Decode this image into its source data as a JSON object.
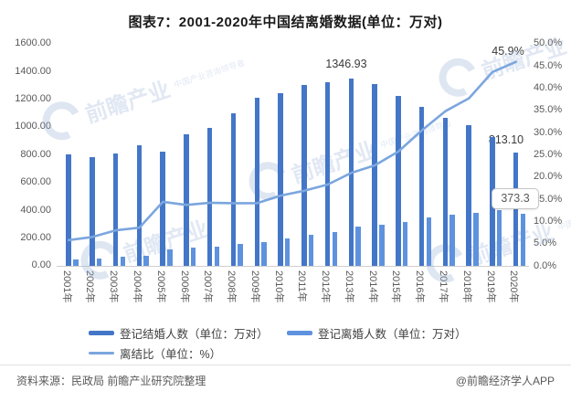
{
  "title": "图表7：2001-2020年中国结离婚数据(单位：万对)",
  "chart_data": {
    "type": "bar",
    "categories": [
      "2001年",
      "2002年",
      "2003年",
      "2004年",
      "2005年",
      "2006年",
      "2007年",
      "2008年",
      "2009年",
      "2010年",
      "2011年",
      "2012年",
      "2013年",
      "2014年",
      "2015年",
      "2016年",
      "2017年",
      "2018年",
      "2019年",
      "2020年"
    ],
    "series": [
      {
        "name": "登记结婚人数（单位：万对）",
        "type": "bar",
        "axis": "left",
        "color": "#4476c8",
        "values": [
          805.0,
          786.0,
          811.4,
          867.2,
          823.1,
          945.0,
          991.4,
          1098.3,
          1211.9,
          1241.0,
          1302.4,
          1323.6,
          1346.93,
          1306.7,
          1224.7,
          1142.8,
          1063.1,
          1010.8,
          927.3,
          813.1
        ]
      },
      {
        "name": "登记离婚人数（单位：万对）",
        "type": "bar",
        "axis": "left",
        "color": "#5e92de",
        "values": [
          47,
          51,
          65,
          75,
          118.9,
          129.1,
          140.4,
          155.3,
          171.3,
          196.1,
          220.7,
          242.3,
          281.5,
          295.7,
          314.9,
          348.6,
          370.4,
          381.2,
          404.7,
          373.3
        ]
      },
      {
        "name": "离结比（单位：%）",
        "type": "line",
        "axis": "right",
        "color": "#7ba6de",
        "values": [
          5.8,
          6.5,
          8.0,
          8.6,
          14.4,
          13.7,
          14.2,
          14.1,
          14.1,
          15.8,
          16.9,
          18.3,
          20.9,
          22.6,
          25.7,
          30.5,
          34.8,
          37.7,
          43.6,
          45.9
        ]
      }
    ],
    "left_axis": {
      "min": 0,
      "max": 1600,
      "step": 200,
      "labels": [
        "1600.00",
        "1400.00",
        "1200.00",
        "1000.00",
        "800.00",
        "600.00",
        "400.00",
        "200.00",
        "0.00"
      ]
    },
    "right_axis": {
      "min": 0,
      "max": 50,
      "step": 5,
      "labels": [
        "50.0%",
        "45.0%",
        "40.0%",
        "35.0%",
        "30.0%",
        "25.0%",
        "20.0%",
        "15.0%",
        "10.0%",
        "5.0%",
        "0.0%"
      ]
    },
    "grid": "off",
    "annotations": {
      "peak_marriage_2013": "1346.93",
      "marriage_2020": "813.10",
      "divorce_2020_boxed": "373.3",
      "ratio_2020": "45.9%"
    }
  },
  "legend": {
    "items": [
      {
        "label": "登记结婚人数（单位：万对）",
        "color": "#4476c8",
        "type": "bar"
      },
      {
        "label": "登记离婚人数（单位：万对）",
        "color": "#5e92de",
        "type": "bar"
      },
      {
        "label": "离结比（单位：%）",
        "color": "#7ba6de",
        "type": "line"
      }
    ]
  },
  "footer": {
    "source": "资料来源：民政局 前瞻产业研究院整理",
    "credit": "@前瞻经济学人APP"
  },
  "watermark": {
    "text": "前瞻产业",
    "subtext": "中国产业咨询领导者"
  }
}
